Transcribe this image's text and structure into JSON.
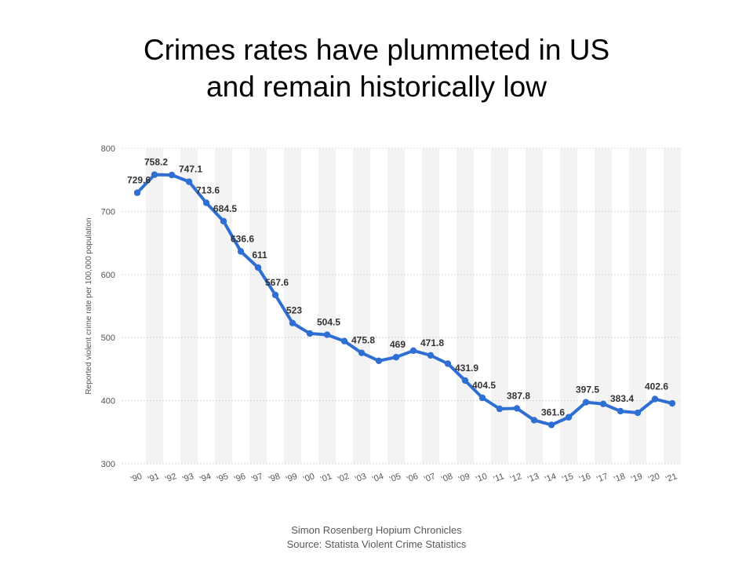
{
  "slide": {
    "title_line1": "Crimes rates have plummeted in US",
    "title_line2": "and remain historically low",
    "credit_line1": "Simon Rosenberg Hopium Chronicles",
    "credit_line2": "Source: Statista Violent Crime Statistics"
  },
  "colors": {
    "line": "#2f6fd3",
    "grid": "#dadada",
    "band": "#f3f3f3",
    "text": "#333333",
    "axis": "#555555"
  },
  "chart_data": {
    "type": "line",
    "ylabel": "Reported violent crime rate per 100,000 population",
    "xlabel": "",
    "ylim": [
      300,
      800
    ],
    "yticks": [
      300,
      400,
      500,
      600,
      700,
      800
    ],
    "grid": true,
    "categories": [
      "'90",
      "'91",
      "'92",
      "'93",
      "'94",
      "'95",
      "'96",
      "'97",
      "'98",
      "'99",
      "'00",
      "'01",
      "'02",
      "'03",
      "'04",
      "'05",
      "'06",
      "'07",
      "'08",
      "'09",
      "'10",
      "'11",
      "'12",
      "'13",
      "'14",
      "'15",
      "'16",
      "'17",
      "'18",
      "'19",
      "'20",
      "'21"
    ],
    "series": [
      {
        "values": [
          729.6,
          758.2,
          757.7,
          747.1,
          713.6,
          684.5,
          636.6,
          611,
          567.6,
          523,
          506.5,
          504.5,
          494.4,
          475.8,
          463.2,
          469,
          479.3,
          471.8,
          458.6,
          431.9,
          404.5,
          387.1,
          387.8,
          369.1,
          361.6,
          373.7,
          397.5,
          394.9,
          383.4,
          380.8,
          402.6,
          395.7
        ],
        "data_labels": {
          "0": "729.6",
          "1": "758.2",
          "3": "747.1",
          "4": "713.6",
          "5": "684.5",
          "6": "636.6",
          "7": "611",
          "8": "567.6",
          "9": "523",
          "11": "504.5",
          "13": "475.8",
          "15": "469",
          "17": "471.8",
          "19": "431.9",
          "20": "404.5",
          "22": "387.8",
          "24": "361.6",
          "26": "397.5",
          "28": "383.4",
          "30": "402.6"
        }
      }
    ]
  }
}
